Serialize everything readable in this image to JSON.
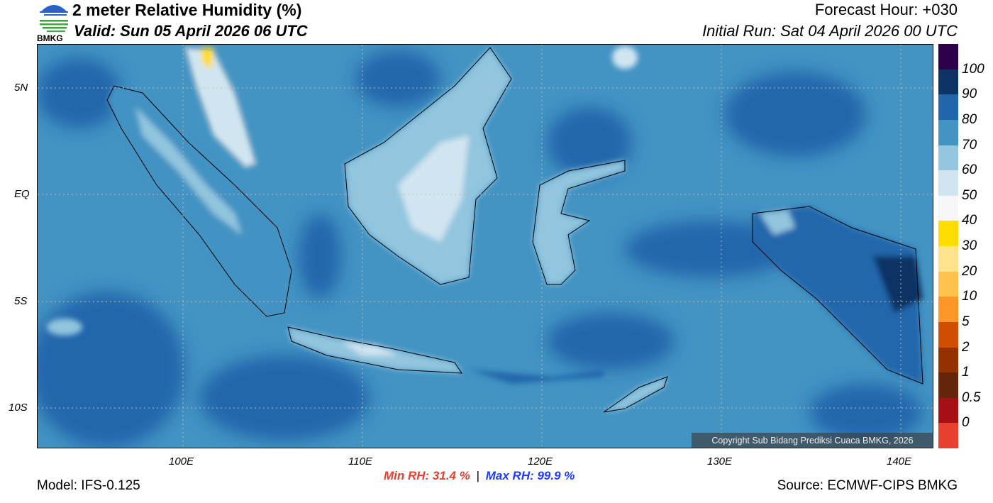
{
  "header": {
    "logo_text": "BMKG",
    "title": "2 meter Relative Humidity (%)",
    "valid": "Valid: Sun 05 April 2026 06 UTC",
    "forecast_hour": "Forecast Hour: +030",
    "initial_run": "Initial Run: Sat 04 April 2026 00 UTC"
  },
  "map": {
    "lat_labels": [
      "5N",
      "EQ",
      "5S",
      "10S"
    ],
    "lon_labels": [
      "100E",
      "110E",
      "120E",
      "130E",
      "140E"
    ],
    "copyright": "Copyright Sub Bidang Prediksi Cuaca BMKG, 2026"
  },
  "colorbar": {
    "colors": [
      "#2d004b",
      "#0b3364",
      "#2166ac",
      "#4393c3",
      "#92c5de",
      "#d1e5f0",
      "#f7f7f7",
      "#ffdd00",
      "#ffe28c",
      "#ffc24d",
      "#ff9628",
      "#cf4e00",
      "#933200",
      "#652508",
      "#a50f15",
      "#e8402f"
    ],
    "labels": [
      "100",
      "90",
      "80",
      "70",
      "60",
      "50",
      "40",
      "30",
      "20",
      "10",
      "5",
      "2",
      "1",
      "0.5",
      "0"
    ]
  },
  "footer": {
    "model": "Model: IFS-0.125",
    "min_rh": "Min RH:  31.4 %",
    "separator": "|",
    "max_rh": "Max RH:  99.9 %",
    "min_color": "#e8402f",
    "max_color": "#1e3cff",
    "source": "Source: ECMWF-CIPS BMKG"
  }
}
